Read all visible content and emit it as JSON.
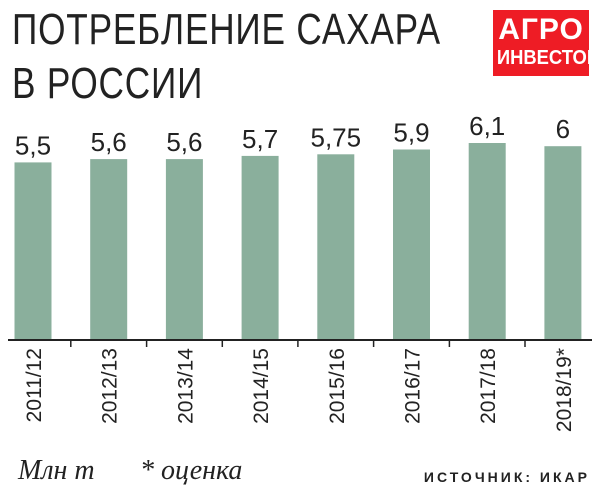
{
  "title_line1": "ПОТРЕБЛЕНИЕ САХАРА",
  "title_line2": "В РОССИИ",
  "logo": {
    "line1": "АГРО",
    "line2": "ИНВЕСТОР"
  },
  "units": "Млн т",
  "footnote": "* оценка",
  "source": "ИСТОЧНИК: ИКАР",
  "colors": {
    "bar": "#8aaf9c",
    "axis": "#222222",
    "logo_bg": "#ee1c25",
    "text": "#222222"
  },
  "chart_data": {
    "type": "bar",
    "categories": [
      "2011/12",
      "2012/13",
      "2013/14",
      "2014/15",
      "2015/16",
      "2016/17",
      "2017/18",
      "2018/19*"
    ],
    "values": [
      5.5,
      5.6,
      5.6,
      5.7,
      5.75,
      5.9,
      6.1,
      6
    ],
    "value_labels": [
      "5,5",
      "5,6",
      "5,6",
      "5,7",
      "5,75",
      "5,9",
      "6,1",
      "6"
    ],
    "xlabel": "",
    "ylabel": "Млн т",
    "ylim": [
      0,
      6.1
    ],
    "grid": false,
    "legend": "none"
  }
}
